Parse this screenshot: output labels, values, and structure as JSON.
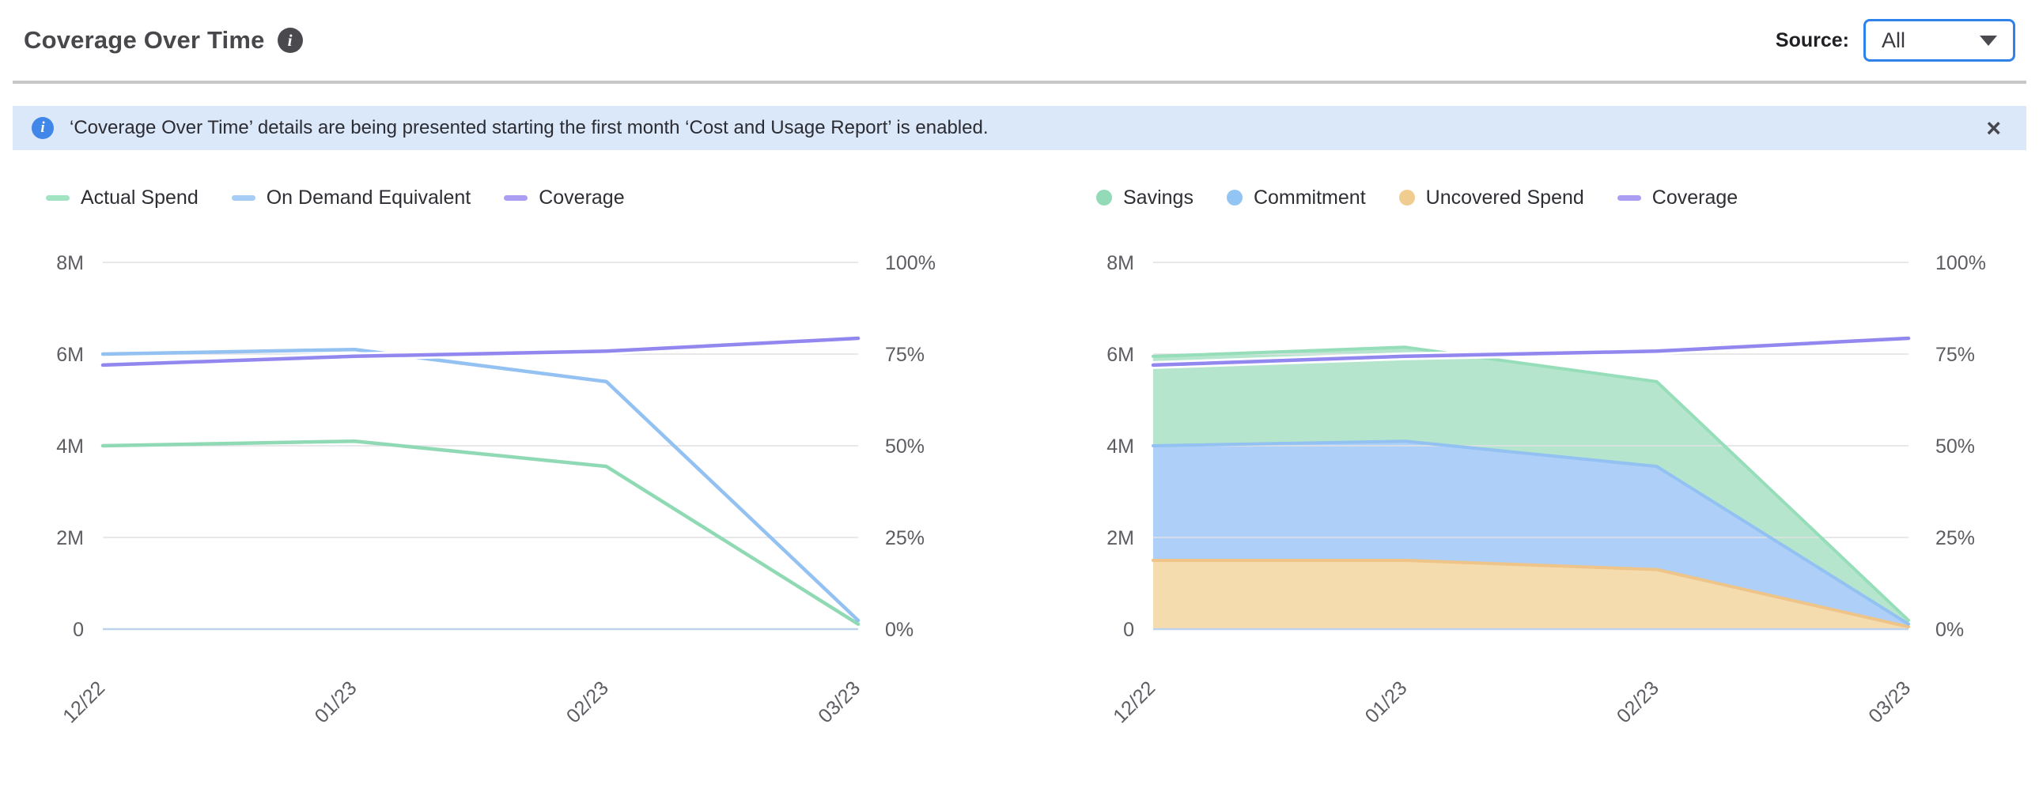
{
  "header": {
    "title": "Coverage Over Time",
    "info_icon": "info-icon",
    "source_label": "Source:",
    "source_value": "All"
  },
  "banner": {
    "icon": "info-icon",
    "text": "‘Coverage Over Time’ details are being presented starting the first month ‘Cost and Usage Report’ is enabled.",
    "close_label": "×"
  },
  "colors": {
    "dropdown_border": "#2f82e9",
    "banner_bg": "#dbe8fa",
    "banner_icon_bg": "#4186e9",
    "title_icon_bg": "#4a4a4e",
    "gridline": "#e0e0e4",
    "baseline": "#bdd3eb",
    "axis_text": "#5c5c63",
    "actual_spend": "#8fdab4",
    "on_demand_equivalent": "#92c1f2",
    "coverage": "#9187ee",
    "savings_fill": "#b5e6cd",
    "savings_edge": "#96ddb9",
    "commitment_fill": "#aecff7",
    "commitment_edge": "#92c1f2",
    "uncovered_fill": "#f5dcae",
    "uncovered_edge": "#eec488"
  },
  "chart_data": [
    {
      "type": "line",
      "title": "Spend vs On Demand Equivalent with Coverage",
      "categories": [
        "12/22",
        "01/23",
        "02/23",
        "03/23"
      ],
      "y_left": {
        "max": 8,
        "unit": "M",
        "tick_values": [
          8,
          6,
          4,
          2,
          0
        ],
        "tick_labels": [
          "8M",
          "6M",
          "4M",
          "2M",
          "0"
        ]
      },
      "y_right": {
        "max": 100,
        "unit": "%",
        "tick_values": [
          100,
          75,
          50,
          25,
          0
        ],
        "tick_labels": [
          "100%",
          "75%",
          "50%",
          "25%",
          "0%"
        ]
      },
      "grid": true,
      "legend_position": "top",
      "legend": [
        {
          "name": "Actual Spend",
          "marker": "dash",
          "color": "#a2e3c4"
        },
        {
          "name": "On Demand Equivalent",
          "marker": "dash",
          "color": "#a6cdf5"
        },
        {
          "name": "Coverage",
          "marker": "dash",
          "color": "#ab9df2"
        }
      ],
      "series": [
        {
          "name": "Actual Spend",
          "kind": "line",
          "axis": "left",
          "unit": "M",
          "color": "#8fdab4",
          "values": [
            4.0,
            4.1,
            3.55,
            0.11
          ]
        },
        {
          "name": "On Demand Equivalent",
          "kind": "line",
          "axis": "left",
          "unit": "M",
          "color": "#92c1f2",
          "values": [
            6.0,
            6.1,
            5.4,
            0.19
          ]
        },
        {
          "name": "Coverage",
          "kind": "line",
          "axis": "right",
          "unit": "%",
          "color": "#9187ee",
          "casing": true,
          "values": [
            72,
            74.4,
            75.8,
            79.3
          ]
        }
      ]
    },
    {
      "type": "area",
      "stacked": true,
      "title": "Savings, Commitment and Uncovered Spend with Coverage",
      "categories": [
        "12/22",
        "01/23",
        "02/23",
        "03/23"
      ],
      "y_left": {
        "max": 8,
        "unit": "M",
        "tick_values": [
          8,
          6,
          4,
          2,
          0
        ],
        "tick_labels": [
          "8M",
          "6M",
          "4M",
          "2M",
          "0"
        ]
      },
      "y_right": {
        "max": 100,
        "unit": "%",
        "tick_values": [
          100,
          75,
          50,
          25,
          0
        ],
        "tick_labels": [
          "100%",
          "75%",
          "50%",
          "25%",
          "0%"
        ]
      },
      "grid": true,
      "legend_position": "top",
      "legend": [
        {
          "name": "Savings",
          "marker": "dot",
          "color": "#93dbb8"
        },
        {
          "name": "Commitment",
          "marker": "dot",
          "color": "#92c4f4"
        },
        {
          "name": "Uncovered Spend",
          "marker": "dot",
          "color": "#f1cc8f"
        },
        {
          "name": "Coverage",
          "marker": "dash",
          "color": "#ab9df2"
        }
      ],
      "series": [
        {
          "name": "Uncovered Spend",
          "kind": "area",
          "axis": "left",
          "unit": "M",
          "color": "#eec488",
          "fill": "#f5dcae",
          "values": [
            1.5,
            1.5,
            1.3,
            0.05
          ]
        },
        {
          "name": "Commitment",
          "kind": "area",
          "axis": "left",
          "unit": "M",
          "color": "#92c1f2",
          "fill": "#aecff7",
          "values": [
            2.5,
            2.6,
            2.25,
            0.06
          ]
        },
        {
          "name": "Savings",
          "kind": "area",
          "axis": "left",
          "unit": "M",
          "color": "#96ddb9",
          "fill": "#b5e6cd",
          "values": [
            1.95,
            2.05,
            1.85,
            0.08
          ]
        },
        {
          "name": "Coverage",
          "kind": "line",
          "axis": "right",
          "unit": "%",
          "color": "#9187ee",
          "casing": true,
          "values": [
            72,
            74.4,
            75.8,
            79.3
          ]
        }
      ]
    }
  ]
}
